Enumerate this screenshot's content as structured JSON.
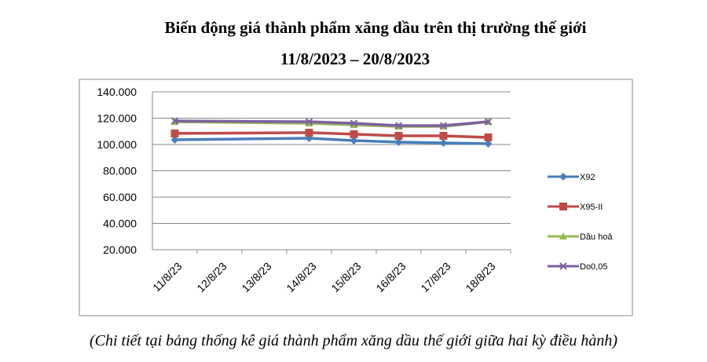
{
  "chart_data": {
    "type": "line",
    "title": "Biến động giá thành phẩm xăng dầu trên thị trường thế giới",
    "subtitle": "11/8/2023 – 20/8/2023",
    "note": "(Chi tiết tại bảng thống kê giá thành phẩm xăng dầu thế giới giữa hai kỳ điều hành)",
    "xticks": [
      "11/8/23",
      "12/8/23",
      "13/8/23",
      "14/8/23",
      "15/8/23",
      "16/8/23",
      "17/8/23",
      "18/8/23"
    ],
    "x": [
      "11/8/23",
      "14/8/23",
      "15/8/23",
      "16/8/23",
      "17/8/23",
      "18/8/23"
    ],
    "series": [
      {
        "name": "X92",
        "color": "#4a7ebb",
        "marker": "diamond",
        "values": [
          103600,
          104800,
          103000,
          101800,
          101200,
          100600
        ]
      },
      {
        "name": "X95-II",
        "color": "#be4b48",
        "marker": "square",
        "values": [
          108400,
          109000,
          107800,
          106600,
          106600,
          105400
        ]
      },
      {
        "name": "Dầu hoả",
        "color": "#98b954",
        "marker": "triangle",
        "values": [
          117300,
          116100,
          114900,
          113700,
          113700,
          117300
        ]
      },
      {
        "name": "Do0,05",
        "color": "#7d60a0",
        "marker": "x",
        "values": [
          117900,
          117300,
          116100,
          114300,
          114300,
          117300
        ]
      }
    ],
    "ylim": [
      20000,
      140000
    ],
    "yticks": [
      {
        "value": 20000,
        "label": "20.000"
      },
      {
        "value": 40000,
        "label": "40.000"
      },
      {
        "value": 60000,
        "label": "60.000"
      },
      {
        "value": 80000,
        "label": "80.000"
      },
      {
        "value": 100000,
        "label": "100.000"
      },
      {
        "value": 120000,
        "label": "120.000"
      },
      {
        "value": 140000,
        "label": "140.000"
      }
    ],
    "grid": true,
    "legend": "right"
  }
}
